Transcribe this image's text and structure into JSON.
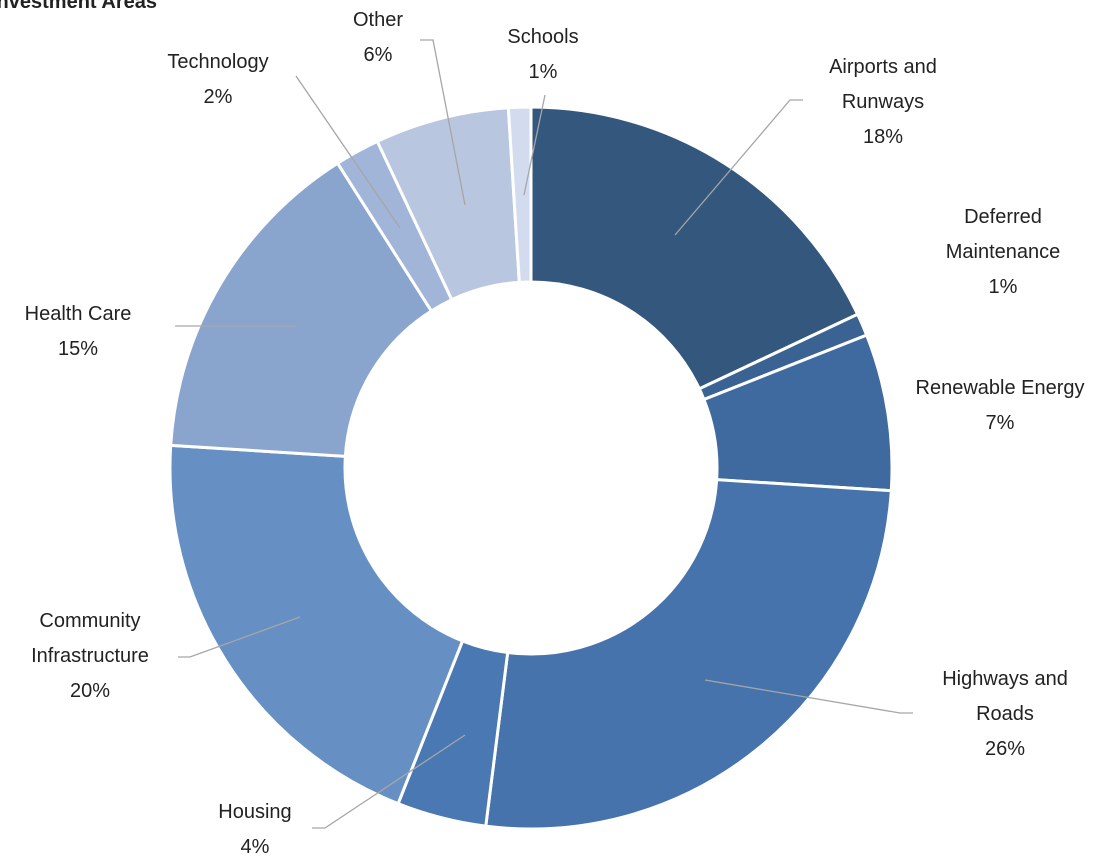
{
  "chart_data": {
    "type": "donut",
    "title": "Investment Areas",
    "categories": [
      "Airports and Runways",
      "Deferred Maintenance",
      "Renewable Energy",
      "Highways and Roads",
      "Housing",
      "Community Infrastructure",
      "Health Care",
      "Technology",
      "Other",
      "Schools"
    ],
    "values": [
      18,
      1,
      7,
      26,
      4,
      20,
      15,
      2,
      6,
      1
    ],
    "value_labels": [
      "18%",
      "1%",
      "7%",
      "26%",
      "4%",
      "20%",
      "15%",
      "2%",
      "6%",
      "1%"
    ],
    "colors": [
      "#34577e",
      "#3a6292",
      "#3e6aa0",
      "#4673ab",
      "#4a78b3",
      "#6690c4",
      "#8aa5cd",
      "#a1b5d8",
      "#b9c6e0",
      "#d3dcee"
    ]
  }
}
